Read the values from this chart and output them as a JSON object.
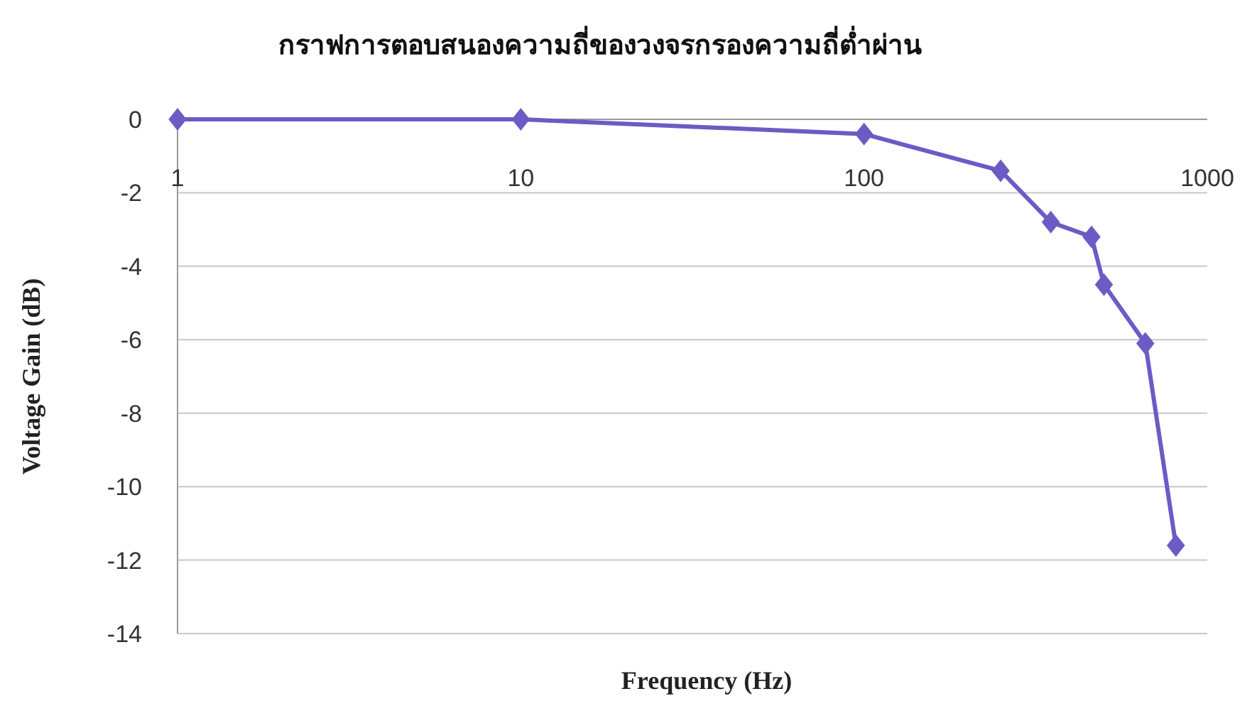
{
  "chart_data": {
    "type": "line",
    "title": "กราฟการตอบสนองความถี่ของวงจรกรองความถี่ต่ำผ่าน",
    "xlabel": "Frequency (Hz)",
    "ylabel": "Voltage Gain (dB)",
    "x": [
      1,
      10,
      100,
      250,
      350,
      460,
      500,
      660,
      810
    ],
    "series": [
      {
        "color": "#6a5cc4",
        "values": [
          0,
          0,
          -0.4,
          -1.4,
          -2.8,
          -3.2,
          -4.5,
          -6.1,
          -11.6
        ]
      }
    ],
    "log": "x",
    "xlim": [
      1,
      1000
    ],
    "ylim": [
      -14,
      0
    ],
    "xticks": [
      1,
      10,
      100,
      1000
    ],
    "yticks": [
      0,
      -2,
      -4,
      -6,
      -8,
      -10,
      -12,
      -14
    ],
    "grid": "y",
    "marker": "diamond"
  }
}
